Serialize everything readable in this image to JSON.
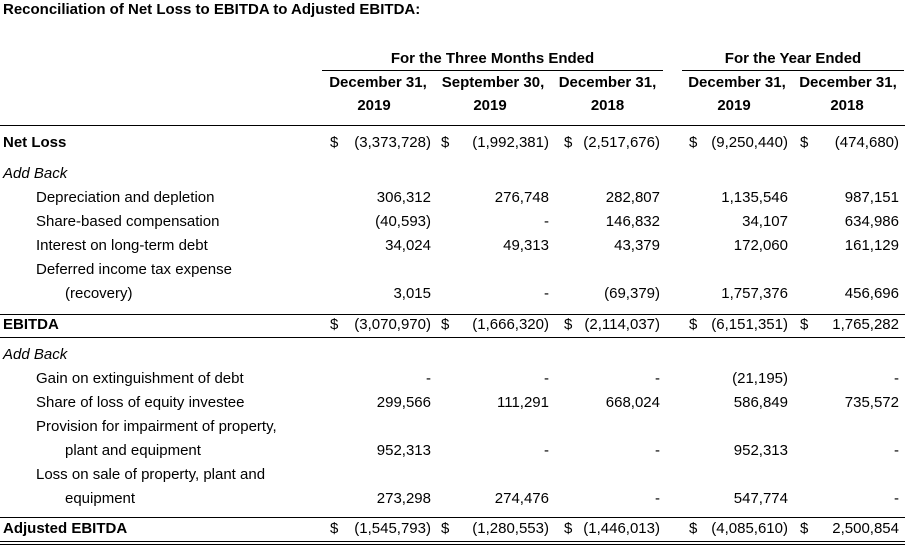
{
  "title": "Reconciliation of Net Loss to EBITDA to Adjusted EBITDA:",
  "headers": {
    "group_three_months": "For the Three Months Ended",
    "group_year": "For the Year Ended",
    "col1_date": "December 31,",
    "col1_year": "2019",
    "col2_date": "September 30,",
    "col2_year": "2019",
    "col3_date": "December 31,",
    "col3_year": "2018",
    "col4_date": "December 31,",
    "col4_year": "2019",
    "col5_date": "December 31,",
    "col5_year": "2018"
  },
  "currency": "$",
  "rows": [
    {
      "label": "Net Loss",
      "style": "bold",
      "currency": true,
      "values": [
        "(3,373,728)",
        "(1,992,381)",
        "(2,517,676)",
        "(9,250,440)",
        "(474,680)"
      ]
    },
    {
      "label": "Add Back",
      "style": "italic",
      "values": [
        "",
        "",
        "",
        "",
        ""
      ]
    },
    {
      "label": "Depreciation and depletion",
      "values": [
        "306,312",
        "276,748",
        "282,807",
        "1,135,546",
        "987,151"
      ]
    },
    {
      "label": "Share-based compensation",
      "values": [
        "(40,593)",
        "-",
        "146,832",
        "34,107",
        "634,986"
      ]
    },
    {
      "label": "Interest on long-term debt",
      "values": [
        "34,024",
        "49,313",
        "43,379",
        "172,060",
        "161,129"
      ]
    },
    {
      "label": "Deferred income tax expense",
      "values": [
        "",
        "",
        "",
        "",
        ""
      ]
    },
    {
      "label": "(recovery)",
      "values": [
        "3,015",
        "-",
        "(69,379)",
        "1,757,376",
        "456,696"
      ]
    },
    {
      "label": "EBITDA",
      "style": "bold",
      "currency": true,
      "values": [
        "(3,070,970)",
        "(1,666,320)",
        "(2,114,037)",
        "(6,151,351)",
        "1,765,282"
      ]
    },
    {
      "label": "Add Back",
      "style": "italic",
      "values": [
        "",
        "",
        "",
        "",
        ""
      ]
    },
    {
      "label": "Gain on extinguishment of debt",
      "values": [
        "-",
        "-",
        "-",
        "(21,195)",
        "-"
      ]
    },
    {
      "label": "Share of loss of equity investee",
      "values": [
        "299,566",
        "111,291",
        "668,024",
        "586,849",
        "735,572"
      ]
    },
    {
      "label": "Provision for impairment of property,",
      "values": [
        "",
        "",
        "",
        "",
        ""
      ]
    },
    {
      "label": "plant and equipment",
      "values": [
        "952,313",
        "-",
        "-",
        "952,313",
        "-"
      ]
    },
    {
      "label": "Loss on sale of property, plant and",
      "values": [
        "",
        "",
        "",
        "",
        ""
      ]
    },
    {
      "label": "equipment",
      "values": [
        "273,298",
        "274,476",
        "-",
        "547,774",
        "-"
      ]
    },
    {
      "label": "Adjusted EBITDA",
      "style": "bold",
      "currency": true,
      "values": [
        "(1,545,793)",
        "(1,280,553)",
        "(1,446,013)",
        "(4,085,610)",
        "2,500,854"
      ]
    }
  ]
}
